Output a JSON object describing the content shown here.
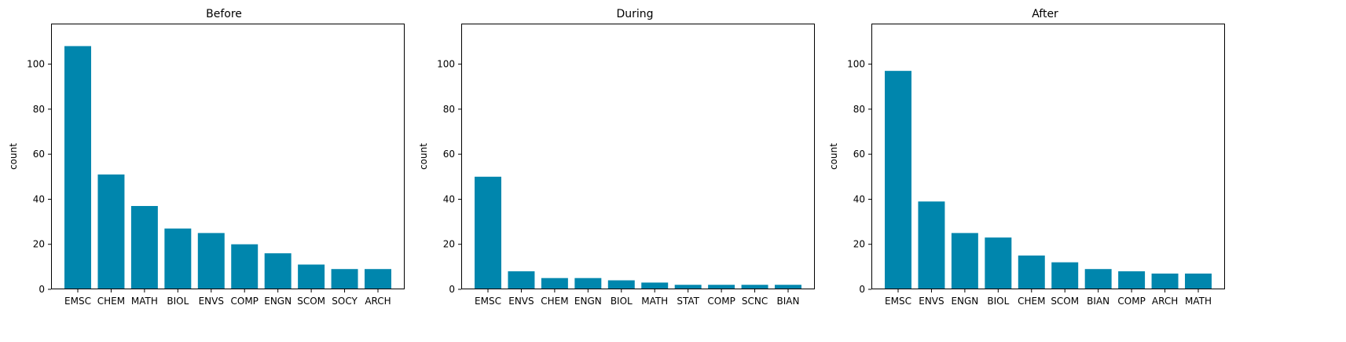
{
  "figure": {
    "bar_color": "#0086ad",
    "background": "#ffffff"
  },
  "chart_data": [
    {
      "type": "bar",
      "title": "Before",
      "xlabel": "",
      "ylabel": "count",
      "ylim": [
        0,
        118
      ],
      "yticks": [
        0,
        20,
        40,
        60,
        80,
        100
      ],
      "categories": [
        "EMSC",
        "CHEM",
        "MATH",
        "BIOL",
        "ENVS",
        "COMP",
        "ENGN",
        "SCOM",
        "SOCY",
        "ARCH"
      ],
      "values": [
        108,
        51,
        37,
        27,
        25,
        20,
        16,
        11,
        9,
        9
      ]
    },
    {
      "type": "bar",
      "title": "During",
      "xlabel": "",
      "ylabel": "count",
      "ylim": [
        0,
        118
      ],
      "yticks": [
        0,
        20,
        40,
        60,
        80,
        100
      ],
      "categories": [
        "EMSC",
        "ENVS",
        "CHEM",
        "ENGN",
        "BIOL",
        "MATH",
        "STAT",
        "COMP",
        "SCNC",
        "BIAN"
      ],
      "values": [
        50,
        8,
        5,
        5,
        4,
        3,
        2,
        2,
        2,
        2
      ]
    },
    {
      "type": "bar",
      "title": "After",
      "xlabel": "",
      "ylabel": "count",
      "ylim": [
        0,
        118
      ],
      "yticks": [
        0,
        20,
        40,
        60,
        80,
        100
      ],
      "categories": [
        "EMSC",
        "ENVS",
        "ENGN",
        "BIOL",
        "CHEM",
        "SCOM",
        "BIAN",
        "COMP",
        "ARCH",
        "MATH"
      ],
      "values": [
        97,
        39,
        25,
        23,
        15,
        12,
        9,
        8,
        7,
        7
      ]
    }
  ]
}
